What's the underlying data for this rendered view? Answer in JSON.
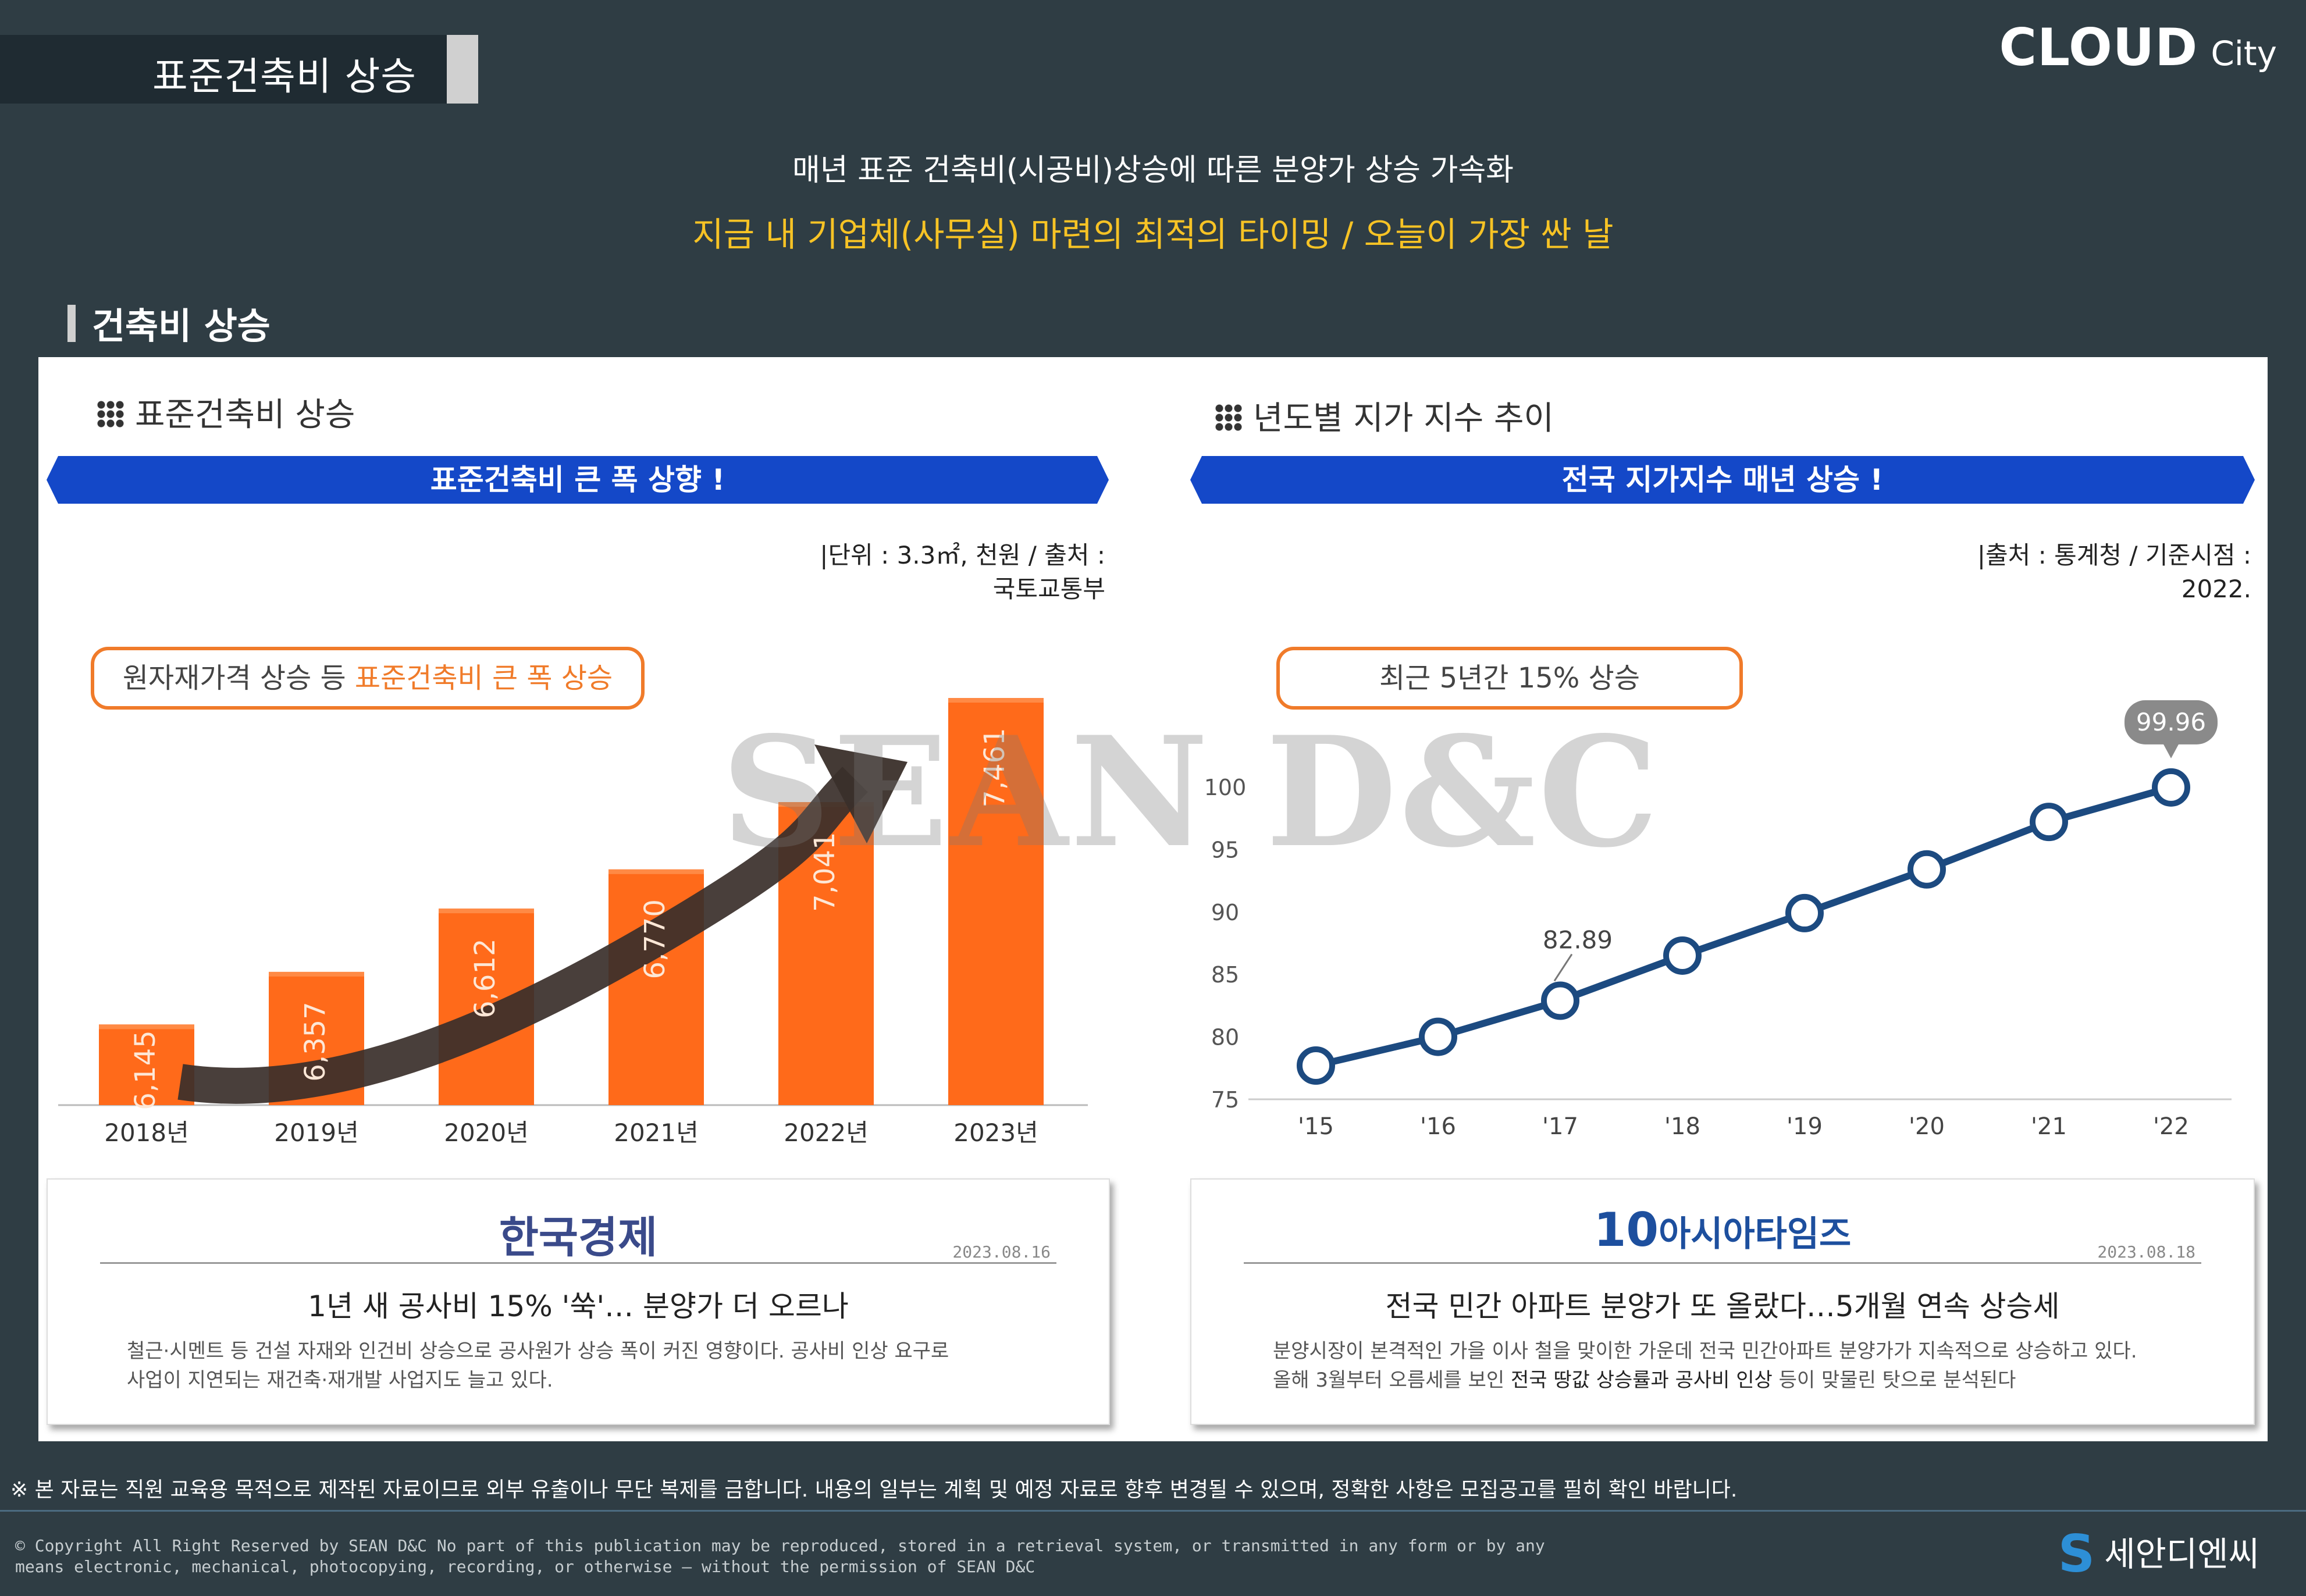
{
  "header": {
    "title": "표준건축비 상승",
    "brand_main": "CLOUD",
    "brand_sub": "City",
    "headline": "매년 표준 건축비(시공비)상승에 따른 분양가 상승 가속화",
    "subheadline": "지금 내 기업체(사무실) 마련의 최적의 타이밍 / 오늘이 가장 싼 날"
  },
  "section": {
    "title": "건축비  상승"
  },
  "left_panel": {
    "subtitle": "표준건축비 상승",
    "banner": "표준건축비 큰 폭 상향 !",
    "source_line1": "|단위 : 3.3㎡, 천원 / 출처 :",
    "source_line2": "국토교통부",
    "pill_text": "원자재가격 상승 등 ",
    "pill_highlight": "표준건축비 큰 폭 상승"
  },
  "right_panel": {
    "subtitle": "년도별 지가 지수 추이",
    "banner": "전국 지가지수 매년 상승 !",
    "source_line1": "|출처 : 통계청 / 기준시점 :",
    "source_line2": "2022.",
    "pill_text": "최근 5년간 15% 상승"
  },
  "chart_data": [
    {
      "type": "bar",
      "categories": [
        "2018년",
        "2019년",
        "2020년",
        "2021년",
        "2022년",
        "2023년"
      ],
      "values": [
        6145,
        6357,
        6612,
        6770,
        7041,
        7461
      ],
      "value_labels": [
        "6,145",
        "6,357",
        "6,612",
        "6,770",
        "7,041",
        "7,461"
      ],
      "bar_color": "#ff6a1a",
      "trend_arrow_color": "#3a2f2a",
      "grid": false
    },
    {
      "type": "line",
      "x": [
        "'15",
        "'16",
        "'17",
        "'18",
        "'19",
        "'20",
        "'21",
        "'22"
      ],
      "values": [
        77.7,
        80.0,
        82.89,
        86.5,
        89.9,
        93.4,
        97.2,
        99.96
      ],
      "y_ticks": [
        75,
        80,
        85,
        90,
        95,
        100
      ],
      "ylim": [
        75,
        102
      ],
      "annotations": [
        {
          "index": 2,
          "label": "82.89"
        },
        {
          "index": 7,
          "label": "99.96"
        }
      ],
      "line_color": "#1c4a80",
      "grid": false
    }
  ],
  "news": [
    {
      "logo": "한국경제",
      "date": "2023.08.16",
      "headline": "1년 새 공사비 15% '쑥'… 분양가 더 오르나",
      "body_line1": "철근·시멘트 등 건설 자재와 인건비 상승으로 공사원가 상승 폭이 커진 영향이다. 공사비 인상 요구로",
      "body_line2": "사업이 지연되는 재건축·재개발 사업지도 늘고 있다."
    },
    {
      "logo_badge": "10",
      "logo": "아시아타임즈",
      "date": "2023.08.18",
      "headline": "전국 민간 아파트 분양가 또 올랐다…5개월 연속 상승세",
      "body_line1": "분양시장이 본격적인 가을 이사 철을 맞이한 가운데 전국 민간아파트 분양가가 지속적으로 상승하고 있다.",
      "body_line2_a": "올해 3월부터 오름세를 보인 ",
      "body_line2_b": "전국 땅값 상승률과 공사비 인상",
      "body_line2_c": " 등이 맞물린 탓으로 분석된다"
    }
  ],
  "watermark": "SEAN D&C",
  "footer": {
    "notice": "※ 본 자료는 직원 교육용 목적으로 제작된 자료이므로 외부 유출이나 무단 복제를 금합니다. 내용의 일부는 계획 및 예정 자료로 향후 변경될 수 있으며, 정확한 사항은 모집공고를 필히 확인 바랍니다.",
    "copyright_line1": "© Copyright All Right Reserved by SEAN D&C  No part of this publication may be reproduced, stored in a retrieval system, or transmitted in any form or by any",
    "copyright_line2": "means electronic, mechanical, photocopying, recording, or otherwise — without the permission of SEAN D&C",
    "logo_mark": "S",
    "logo_text": "세안디엔씨"
  }
}
